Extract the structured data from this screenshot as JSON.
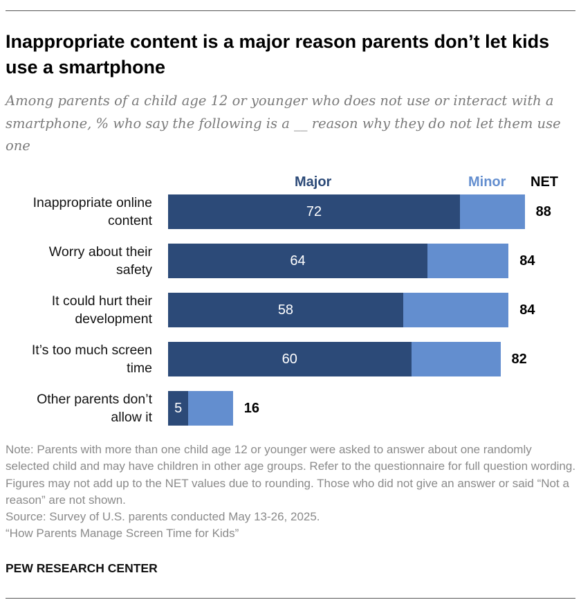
{
  "title": "Inappropriate content is a major reason parents don’t let kids use a smartphone",
  "subtitle": "Among parents of a child age 12 or younger who does not use or interact with a smartphone, % who say the following is a __ reason why they do not let them use one",
  "chart_data": {
    "type": "bar",
    "orientation": "horizontal",
    "stacked": true,
    "categories": [
      "Inappropriate online content",
      "Worry about their safety",
      "It could hurt their development",
      "It’s too much screen time",
      "Other parents don’t allow it"
    ],
    "series": [
      {
        "name": "Major",
        "color": "#2c4a78",
        "values": [
          72,
          64,
          58,
          60,
          5
        ]
      },
      {
        "name": "Minor",
        "color": "#638ecf",
        "values": [
          16,
          20,
          26,
          22,
          11
        ]
      }
    ],
    "net_label": "NET",
    "net": [
      88,
      84,
      84,
      82,
      16
    ],
    "xlim": [
      0,
      100
    ]
  },
  "notes": [
    "Note: Parents with more than one child age 12 or younger were asked to answer about one randomly selected child and may have children in other age groups. Refer to the questionnaire for full question wording. Figures may not add up to the NET values due to rounding. Those who did not give an answer or said “Not a reason” are not shown.",
    "Source: Survey of U.S. parents conducted May 13-26, 2025.",
    "“How Parents Manage Screen Time for Kids”"
  ],
  "org": "PEW RESEARCH CENTER"
}
